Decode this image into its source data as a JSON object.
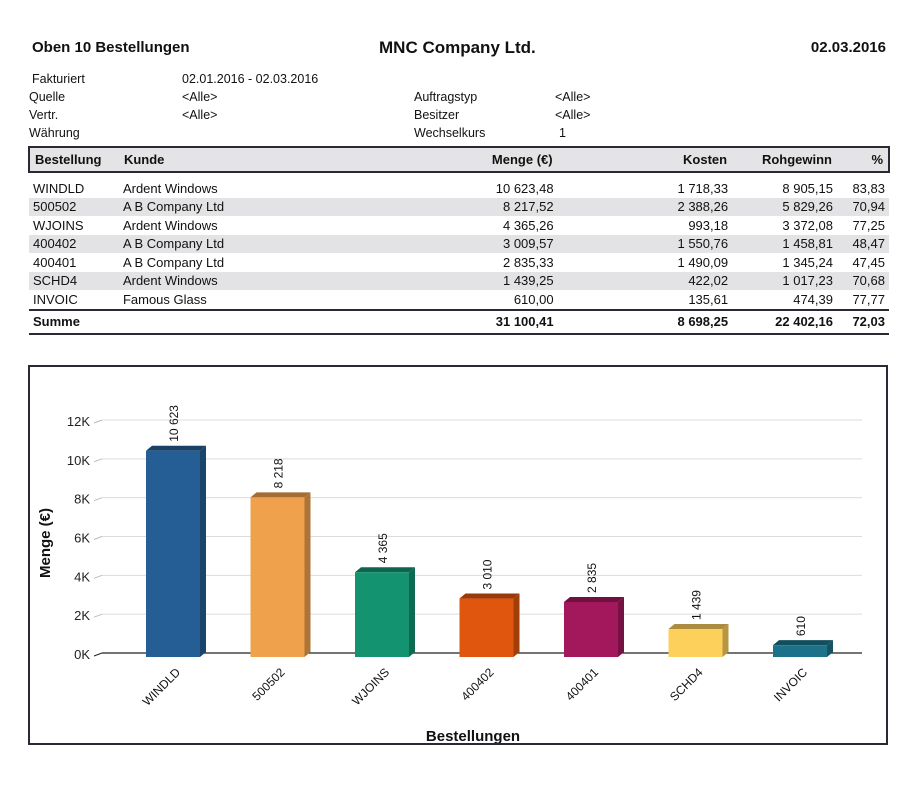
{
  "header": {
    "report_title": "Oben 10 Bestellungen",
    "company": "MNC Company Ltd.",
    "date": "02.03.2016"
  },
  "filters": {
    "left": [
      {
        "label": "Fakturiert",
        "value": "02.01.2016 - 02.03.2016"
      },
      {
        "label": "Quelle",
        "value": "<Alle>"
      },
      {
        "label": "Vertr.",
        "value": "<Alle>"
      },
      {
        "label": "Währung",
        "value": ""
      }
    ],
    "right": [
      {
        "label": "Auftragstyp",
        "value": "<Alle>"
      },
      {
        "label": "Besitzer",
        "value": "<Alle>"
      },
      {
        "label": "Wechselkurs",
        "value": "1"
      }
    ]
  },
  "table": {
    "columns": [
      "Bestellung",
      "Kunde",
      "Menge (€)",
      "Kosten",
      "Rohgewinn",
      "%"
    ],
    "rows": [
      [
        "WINDLD",
        "Ardent Windows",
        "10 623,48",
        "1 718,33",
        "8 905,15",
        "83,83"
      ],
      [
        "500502",
        "A B Company Ltd",
        "8 217,52",
        "2 388,26",
        "5 829,26",
        "70,94"
      ],
      [
        "WJOINS",
        "Ardent Windows",
        "4 365,26",
        "993,18",
        "3 372,08",
        "77,25"
      ],
      [
        "400402",
        "A B Company Ltd",
        "3 009,57",
        "1 550,76",
        "1 458,81",
        "48,47"
      ],
      [
        "400401",
        "A B Company Ltd",
        "2 835,33",
        "1 490,09",
        "1 345,24",
        "47,45"
      ],
      [
        "SCHD4",
        "Ardent Windows",
        "1 439,25",
        "422,02",
        "1 017,23",
        "70,68"
      ],
      [
        "INVOIC",
        "Famous Glass",
        "610,00",
        "135,61",
        "474,39",
        "77,77"
      ]
    ],
    "total": [
      "Summe",
      "",
      "31 100,41",
      "8 698,25",
      "22 402,16",
      "72,03"
    ]
  },
  "chart_data": {
    "type": "bar",
    "title": "",
    "xlabel": "Bestellungen",
    "ylabel": "Menge (€)",
    "ylim": [
      0,
      12000
    ],
    "yticks": [
      0,
      2000,
      4000,
      6000,
      8000,
      10000,
      12000
    ],
    "ytick_labels": [
      "0K",
      "2K",
      "4K",
      "6K",
      "8K",
      "10K",
      "12K"
    ],
    "grid": true,
    "legend": "none",
    "style": "3d",
    "categories": [
      "WINDLD",
      "500502",
      "WJOINS",
      "400402",
      "400401",
      "SCHD4",
      "INVOIC"
    ],
    "values": [
      10623,
      8218,
      4365,
      3010,
      2835,
      1439,
      610
    ],
    "data_labels": [
      "10 623",
      "8 218",
      "4 365",
      "3 010",
      "2 835",
      "1 439",
      "610"
    ],
    "colors": [
      "#255e94",
      "#f0a14c",
      "#149371",
      "#e1560e",
      "#a3185d",
      "#fdd05c",
      "#1c7389"
    ]
  }
}
